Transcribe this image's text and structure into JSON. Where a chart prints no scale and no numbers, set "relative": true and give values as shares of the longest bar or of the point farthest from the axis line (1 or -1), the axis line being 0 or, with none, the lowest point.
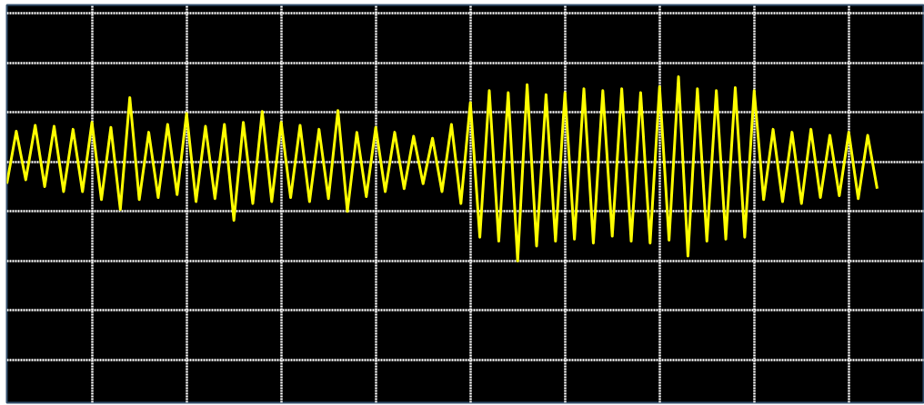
{
  "chart_data": {
    "type": "line",
    "relative": true,
    "grid": true,
    "tick_labels": false,
    "categories": [
      null,
      null,
      null,
      null,
      null,
      null,
      null,
      null,
      null,
      null,
      null,
      null,
      null,
      null,
      null,
      null,
      null,
      null,
      null,
      null,
      null,
      null,
      null,
      null,
      null,
      null,
      null,
      null,
      null,
      null,
      null,
      null,
      null,
      null,
      null,
      null,
      null,
      null,
      null,
      null,
      null,
      null,
      null,
      null,
      null,
      null,
      null,
      null,
      null,
      null,
      null,
      null,
      null,
      null,
      null,
      null,
      null,
      null,
      null,
      null,
      null,
      null,
      null,
      null,
      null,
      null,
      null,
      null,
      null,
      null,
      null,
      null,
      null,
      null,
      null,
      null,
      null,
      null,
      null,
      null,
      null,
      null,
      null,
      null,
      null,
      null,
      null,
      null,
      null,
      null,
      null,
      null,
      null,
      null,
      null,
      null,
      null
    ],
    "series": [
      {
        "color": "#ffff00",
        "values": [
          -0.22,
          0.31,
          -0.18,
          0.37,
          -0.25,
          0.36,
          -0.3,
          0.33,
          -0.3,
          0.4,
          -0.38,
          0.35,
          -0.48,
          0.65,
          -0.38,
          0.3,
          -0.36,
          0.38,
          -0.33,
          0.49,
          -0.4,
          0.36,
          -0.37,
          0.38,
          -0.59,
          0.4,
          -0.42,
          0.51,
          -0.4,
          0.4,
          -0.36,
          0.37,
          -0.4,
          0.33,
          -0.37,
          0.52,
          -0.5,
          0.3,
          -0.35,
          0.35,
          -0.3,
          0.3,
          -0.27,
          0.26,
          -0.22,
          0.24,
          -0.3,
          0.38,
          -0.42,
          0.6,
          -0.76,
          0.72,
          -0.8,
          0.7,
          -1,
          0.78,
          -0.85,
          0.68,
          -0.8,
          0.7,
          -0.78,
          0.74,
          -0.82,
          0.72,
          -0.75,
          0.74,
          -0.8,
          0.7,
          -0.82,
          0.76,
          -0.79,
          0.86,
          -0.95,
          0.74,
          -0.8,
          0.72,
          -0.78,
          0.75,
          -0.76,
          0.72,
          -0.38,
          0.33,
          -0.4,
          0.3,
          -0.42,
          0.33,
          -0.36,
          0.27,
          -0.34,
          0.3,
          -0.37,
          0.27,
          -0.27,
          null,
          null,
          null,
          null
        ]
      }
    ]
  }
}
